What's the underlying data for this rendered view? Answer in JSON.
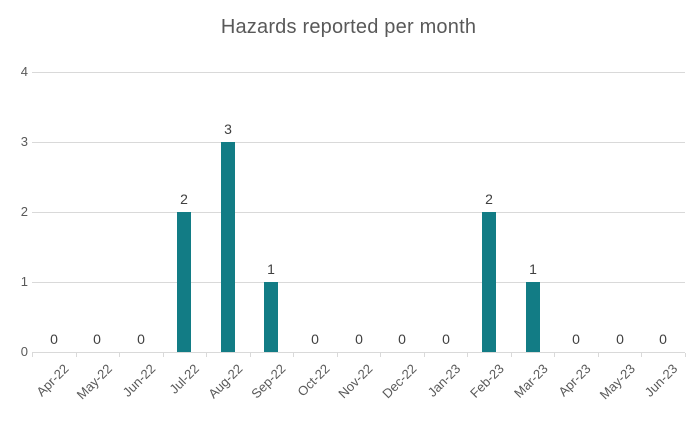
{
  "chart_data": {
    "type": "bar",
    "title": "Hazards reported per month",
    "categories": [
      "Apr-22",
      "May-22",
      "Jun-22",
      "Jul-22",
      "Aug-22",
      "Sep-22",
      "Oct-22",
      "Nov-22",
      "Dec-22",
      "Jan-23",
      "Feb-23",
      "Mar-23",
      "Apr-23",
      "May-23",
      "Jun-23"
    ],
    "values": [
      0,
      0,
      0,
      2,
      3,
      1,
      0,
      0,
      0,
      0,
      2,
      1,
      0,
      0,
      0
    ],
    "xlabel": "",
    "ylabel": "",
    "ylim": [
      0,
      4
    ],
    "yticks": [
      0,
      1,
      2,
      3,
      4
    ],
    "grid": true,
    "legend": "none",
    "data_labels": true,
    "x_label_rotation_deg": 45
  },
  "colors": {
    "background": "#FFFFFF",
    "bar": "#127C85",
    "title": "#595959",
    "axis_labels": "#595959",
    "data_labels": "#404040",
    "gridline": "#D9D9D9",
    "axis_line": "#D9D9D9"
  }
}
